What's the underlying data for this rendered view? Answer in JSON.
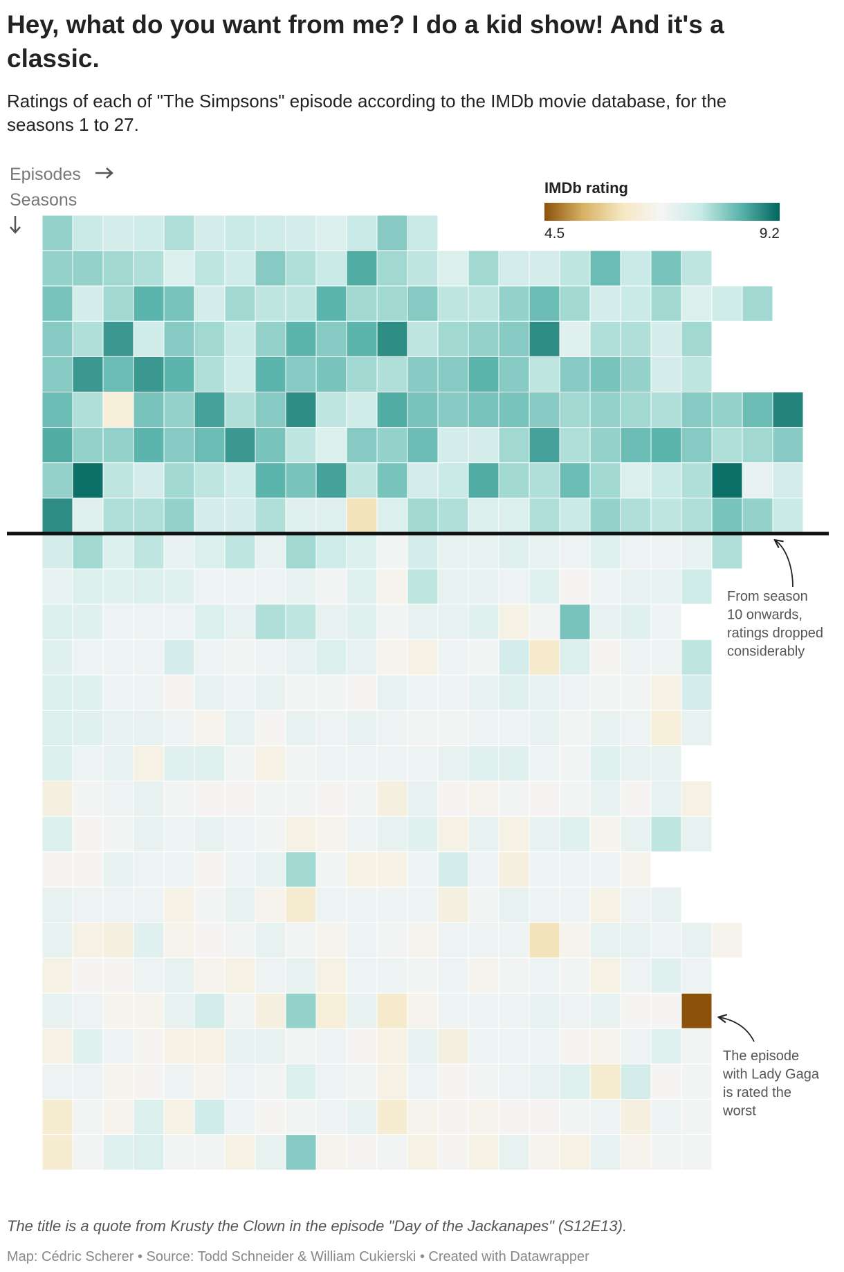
{
  "chart_data": {
    "type": "heatmap",
    "title": [
      "Hey, what do you want from me? I do a kid show! And it's a",
      "classic."
    ],
    "subtitle": [
      "Ratings of each of \"The Simpsons\" episode according to the IMDb movie database, for the",
      "seasons 1 to 27."
    ],
    "x_label": "Episodes",
    "y_label": "Seasons",
    "legend": {
      "title": "IMDb rating",
      "min": 4.5,
      "max": 9.2,
      "colors": [
        "#8c510a",
        "#d8b365",
        "#f6e8c3",
        "#f5f5f5",
        "#c7eae5",
        "#5ab4ac",
        "#01665e"
      ]
    },
    "annotations": [
      {
        "text": [
          "From season",
          "10 onwards,",
          "ratings dropped",
          "considerably"
        ]
      },
      {
        "text": [
          "The episode",
          "with Lady Gaga",
          "is rated the",
          "worst"
        ]
      }
    ],
    "note": "The title is a quote from Krusty the Clown in the episode \"Day of the Jackanapes\" (S12E13).",
    "source": "Map: Cédric Scherer • Source: Todd Schneider & William Cukierski • Created with Datawrapper",
    "values": [
      [
        8.0,
        7.6,
        7.4,
        7.5,
        7.8,
        7.4,
        7.6,
        7.5,
        7.4,
        7.3,
        7.6,
        8.1,
        7.6
      ],
      [
        8.0,
        8.0,
        7.9,
        7.8,
        7.3,
        7.7,
        7.5,
        8.1,
        7.8,
        7.6,
        8.5,
        7.9,
        7.7,
        7.3,
        7.9,
        7.4,
        7.4,
        7.7,
        8.3,
        7.6,
        8.2,
        7.7
      ],
      [
        8.2,
        7.4,
        7.9,
        8.4,
        8.2,
        7.4,
        7.9,
        7.7,
        7.7,
        8.4,
        7.9,
        7.9,
        8.1,
        7.7,
        7.7,
        8.0,
        8.3,
        7.9,
        7.4,
        7.6,
        7.9,
        7.3,
        7.5,
        7.9
      ],
      [
        8.1,
        7.8,
        8.7,
        7.5,
        8.1,
        7.9,
        7.6,
        8.0,
        8.4,
        8.1,
        8.4,
        8.8,
        7.7,
        7.9,
        8.0,
        8.1,
        8.8,
        7.2,
        7.8,
        7.8,
        7.4,
        7.9
      ],
      [
        8.1,
        8.7,
        8.3,
        8.7,
        8.4,
        7.8,
        7.5,
        8.4,
        8.1,
        8.2,
        7.9,
        7.8,
        8.1,
        8.1,
        8.4,
        8.1,
        7.7,
        8.1,
        8.2,
        8.0,
        7.4,
        7.7
      ],
      [
        8.3,
        7.8,
        6.4,
        8.2,
        8.0,
        8.6,
        7.8,
        8.1,
        8.8,
        7.7,
        7.5,
        8.5,
        8.2,
        8.1,
        8.2,
        8.2,
        8.1,
        7.9,
        8.0,
        7.9,
        7.8,
        8.1,
        8.0,
        8.3,
        8.9
      ],
      [
        8.5,
        8.0,
        8.0,
        8.4,
        8.1,
        8.3,
        8.7,
        8.2,
        7.7,
        7.3,
        8.1,
        8.0,
        8.3,
        7.4,
        7.4,
        7.9,
        8.6,
        7.8,
        8.0,
        8.3,
        8.4,
        8.1,
        7.8,
        7.9,
        8.1
      ],
      [
        8.0,
        9.1,
        7.7,
        7.4,
        7.9,
        7.7,
        7.5,
        8.4,
        8.2,
        8.6,
        7.7,
        8.2,
        7.4,
        7.6,
        8.5,
        7.9,
        7.8,
        8.3,
        7.9,
        7.3,
        7.6,
        7.8,
        9.1,
        7.1,
        7.4
      ],
      [
        8.8,
        7.2,
        7.8,
        7.8,
        8.0,
        7.4,
        7.4,
        7.8,
        7.2,
        7.2,
        6.0,
        7.3,
        7.9,
        7.8,
        7.3,
        7.3,
        7.8,
        7.6,
        8.0,
        7.8,
        7.7,
        7.8,
        8.2,
        8.0,
        7.6
      ],
      [
        7.4,
        7.9,
        7.3,
        7.7,
        7.1,
        7.3,
        7.7,
        7.1,
        7.9,
        7.5,
        7.3,
        6.9,
        7.4,
        7.1,
        7.1,
        7.2,
        7.1,
        7.0,
        7.2,
        7.0,
        7.0,
        7.1,
        7.8
      ],
      [
        7.1,
        7.3,
        7.2,
        7.3,
        7.2,
        7.0,
        7.0,
        7.0,
        7.1,
        6.9,
        7.2,
        6.7,
        7.7,
        7.1,
        7.1,
        7.0,
        7.2,
        6.8,
        7.0,
        7.1,
        7.1,
        7.5
      ],
      [
        7.3,
        7.2,
        7.0,
        7.0,
        7.0,
        7.3,
        7.1,
        7.8,
        7.7,
        7.1,
        7.2,
        6.9,
        7.1,
        7.1,
        7.2,
        6.6,
        6.9,
        8.2,
        7.1,
        7.2,
        7.0
      ],
      [
        7.2,
        7.0,
        7.0,
        7.0,
        7.4,
        7.0,
        6.9,
        7.0,
        7.1,
        7.3,
        7.1,
        6.7,
        6.6,
        7.0,
        6.9,
        7.4,
        6.2,
        7.3,
        6.8,
        7.0,
        7.0,
        7.7
      ],
      [
        7.3,
        7.2,
        7.0,
        7.0,
        6.8,
        7.1,
        7.0,
        7.1,
        6.9,
        6.9,
        6.8,
        7.1,
        7.0,
        7.0,
        7.1,
        7.2,
        7.1,
        7.0,
        6.9,
        6.9,
        6.6,
        7.4
      ],
      [
        7.3,
        7.2,
        7.1,
        7.1,
        7.0,
        6.7,
        7.1,
        6.8,
        7.1,
        7.0,
        7.1,
        7.0,
        6.9,
        6.9,
        7.0,
        7.0,
        7.1,
        6.9,
        7.1,
        7.0,
        6.4,
        7.1
      ],
      [
        7.3,
        7.0,
        7.1,
        6.6,
        7.2,
        7.2,
        6.9,
        6.6,
        6.9,
        7.0,
        7.0,
        7.0,
        7.0,
        7.1,
        7.2,
        7.2,
        7.0,
        6.9,
        7.2,
        7.1,
        7.1
      ],
      [
        6.5,
        6.9,
        7.0,
        7.1,
        6.9,
        6.8,
        6.8,
        6.9,
        6.9,
        6.8,
        6.9,
        6.5,
        7.1,
        6.8,
        6.7,
        6.9,
        6.8,
        6.9,
        7.1,
        6.8,
        7.1,
        6.6
      ],
      [
        7.3,
        6.8,
        6.9,
        7.1,
        7.0,
        7.1,
        7.0,
        6.9,
        6.6,
        6.7,
        7.0,
        7.1,
        7.2,
        6.6,
        7.1,
        6.6,
        7.1,
        7.2,
        6.7,
        7.1,
        7.7,
        7.1
      ],
      [
        6.8,
        6.8,
        7.1,
        7.0,
        7.0,
        6.8,
        7.0,
        7.1,
        7.9,
        6.9,
        6.6,
        6.6,
        7.0,
        7.4,
        7.0,
        6.5,
        7.0,
        7.0,
        7.0,
        6.7
      ],
      [
        7.1,
        7.0,
        7.0,
        7.0,
        6.6,
        6.9,
        7.1,
        6.7,
        6.3,
        7.0,
        7.0,
        7.0,
        7.0,
        6.5,
        6.9,
        7.1,
        7.0,
        7.0,
        6.6,
        7.0,
        7.1
      ],
      [
        7.1,
        6.6,
        6.5,
        7.2,
        6.7,
        6.8,
        6.9,
        7.1,
        6.9,
        6.7,
        7.0,
        6.9,
        6.7,
        7.0,
        7.0,
        7.0,
        6.0,
        6.7,
        7.1,
        7.1,
        7.0,
        7.1,
        6.7
      ],
      [
        6.6,
        6.8,
        6.8,
        7.0,
        7.1,
        6.7,
        6.6,
        7.0,
        7.1,
        6.6,
        7.0,
        7.0,
        6.9,
        7.0,
        6.7,
        6.9,
        7.0,
        6.9,
        6.6,
        7.0,
        7.2,
        7.0
      ],
      [
        7.1,
        7.0,
        6.7,
        6.7,
        7.1,
        7.4,
        6.9,
        6.5,
        8.0,
        6.4,
        7.1,
        6.2,
        6.7,
        7.0,
        7.0,
        7.0,
        7.1,
        7.0,
        7.1,
        6.8,
        6.8,
        4.5
      ],
      [
        6.6,
        7.2,
        7.0,
        6.8,
        6.6,
        6.6,
        7.1,
        7.1,
        6.9,
        7.0,
        6.8,
        6.6,
        7.1,
        6.5,
        7.0,
        7.0,
        7.0,
        6.8,
        6.7,
        7.0,
        7.2,
        6.9
      ],
      [
        7.0,
        7.0,
        6.7,
        6.8,
        7.0,
        6.7,
        7.0,
        6.9,
        7.3,
        7.0,
        6.9,
        6.6,
        7.0,
        6.8,
        6.9,
        7.0,
        7.1,
        7.2,
        6.3,
        7.4,
        6.8,
        6.9
      ],
      [
        6.3,
        6.9,
        6.7,
        7.3,
        6.6,
        7.5,
        7.0,
        6.8,
        6.9,
        7.0,
        7.1,
        6.3,
        6.7,
        6.8,
        6.7,
        6.8,
        6.8,
        6.9,
        7.0,
        6.5,
        7.0,
        6.9
      ],
      [
        6.3,
        6.9,
        7.2,
        7.3,
        6.9,
        6.9,
        6.6,
        7.1,
        8.1,
        6.7,
        6.8,
        6.9,
        6.6,
        6.8,
        6.6,
        7.1,
        6.7,
        6.6,
        7.1,
        6.7,
        6.9,
        6.9
      ]
    ]
  }
}
